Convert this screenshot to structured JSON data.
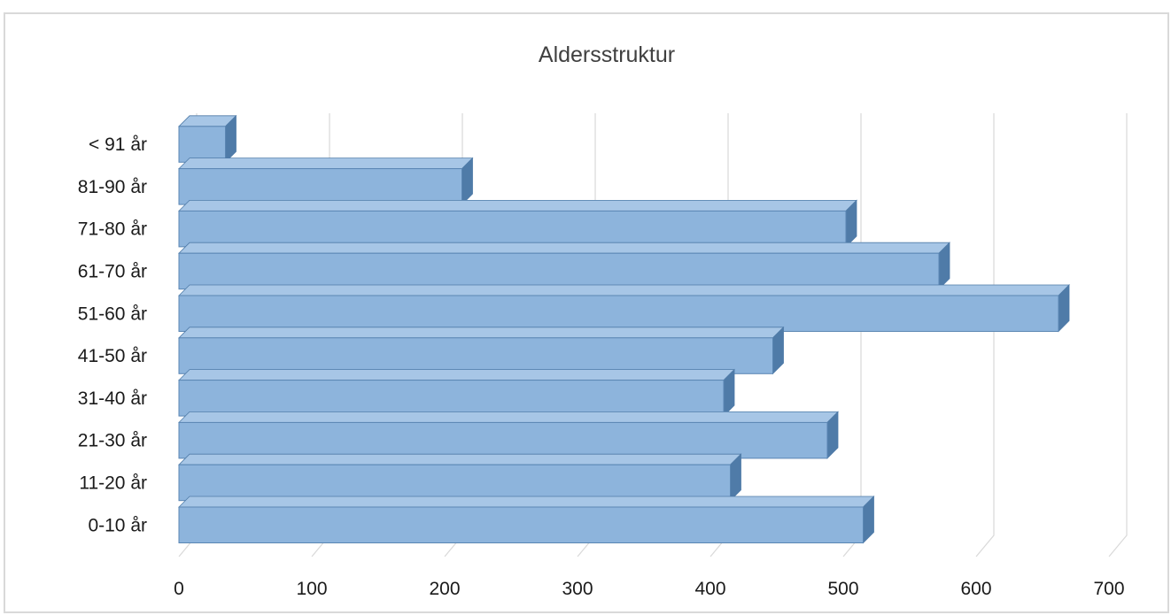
{
  "chart_data": {
    "type": "bar",
    "orientation": "horizontal",
    "style": "3d-clustered-bar",
    "title": "Aldersstruktur",
    "xlabel": "",
    "ylabel": "",
    "categories": [
      "0-10 år",
      "11-20 år",
      "21-30 år",
      "31-40 år",
      "41-50 år",
      "51-60 år",
      "61-70 år",
      "71-80 år",
      "81-90 år",
      "< 91 år"
    ],
    "values": [
      515,
      415,
      488,
      410,
      447,
      662,
      572,
      502,
      213,
      35
    ],
    "xlim": [
      0,
      700
    ],
    "xticks": [
      "0",
      "100",
      "200",
      "300",
      "400",
      "500",
      "600",
      "700"
    ],
    "grid": "vertical",
    "legend": "none",
    "colors": {
      "bar_front": "#8db4dc",
      "bar_top": "#a7c6e6",
      "bar_side": "#4f7ba8",
      "gridline": "#d9d9d9"
    }
  }
}
